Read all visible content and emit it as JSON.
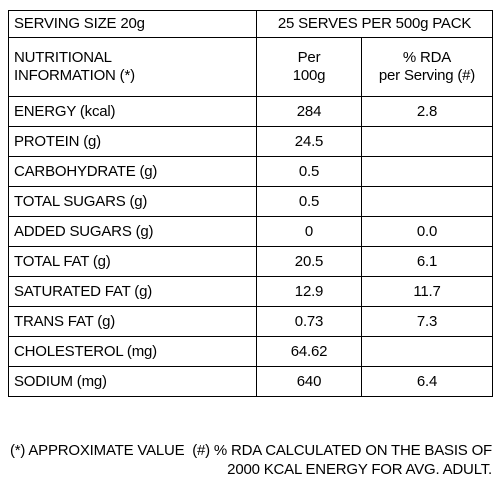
{
  "header": {
    "serving_size": "SERVING SIZE 20g",
    "serves_per_pack": "25 SERVES PER 500g PACK"
  },
  "columns": {
    "nutrient_line1": "NUTRITIONAL",
    "nutrient_line2": "INFORMATION (*)",
    "per_line1": "Per",
    "per_line2": "100g",
    "rda_line1": "% RDA",
    "rda_line2": "per Serving (#)"
  },
  "rows": [
    {
      "name": "ENERGY (kcal)",
      "per100g": "284",
      "rda": "2.8"
    },
    {
      "name": "PROTEIN (g)",
      "per100g": "24.5",
      "rda": ""
    },
    {
      "name": "CARBOHYDRATE (g)",
      "per100g": "0.5",
      "rda": ""
    },
    {
      "name": "TOTAL SUGARS (g)",
      "per100g": "0.5",
      "rda": ""
    },
    {
      "name": "ADDED SUGARS (g)",
      "per100g": "0",
      "rda": "0.0"
    },
    {
      "name": "TOTAL FAT (g)",
      "per100g": "20.5",
      "rda": "6.1"
    },
    {
      "name": "SATURATED FAT (g)",
      "per100g": "12.9",
      "rda": "11.7"
    },
    {
      "name": "TRANS FAT (g)",
      "per100g": "0.73",
      "rda": "7.3"
    },
    {
      "name": "CHOLESTEROL (mg)",
      "per100g": "64.62",
      "rda": ""
    },
    {
      "name": "SODIUM (mg)",
      "per100g": "640",
      "rda": "6.4"
    }
  ],
  "footer": {
    "approx_note": "(*) APPROXIMATE VALUE",
    "rda_note_line1": "(#) % RDA CALCULATED ON THE BASIS OF",
    "rda_note_line2": "2000 KCAL ENERGY FOR AVG. ADULT."
  }
}
